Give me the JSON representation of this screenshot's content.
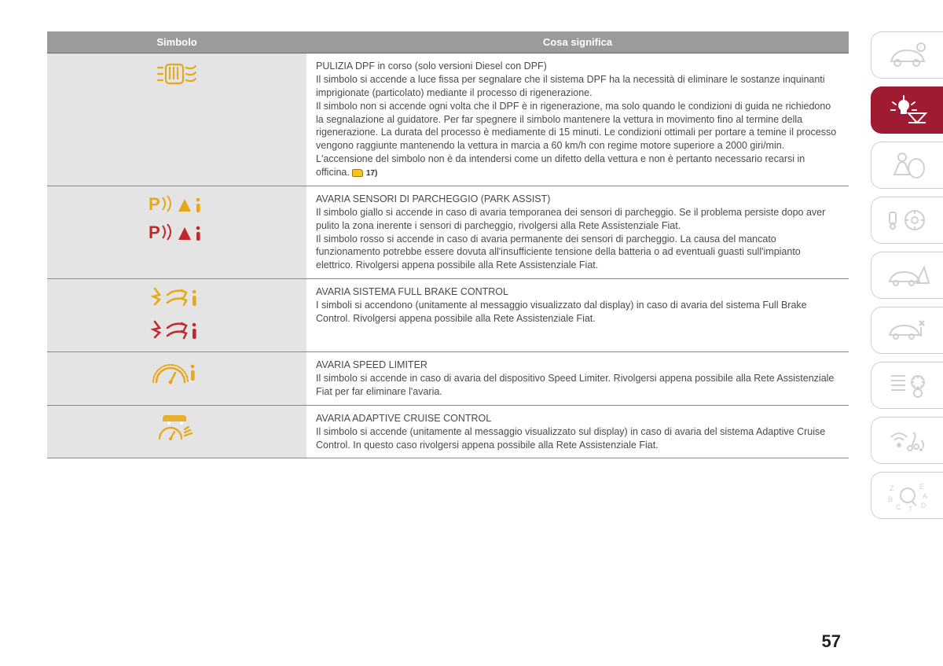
{
  "page_number": "57",
  "colors": {
    "table_header_bg": "#9b9b9b",
    "table_header_text": "#ffffff",
    "symbol_cell_bg": "#e4e4e4",
    "body_text": "#4a4a4a",
    "row_border": "#888888",
    "amber": "#e6a817",
    "red": "#c1272d",
    "tab_active_bg": "#9e1b32",
    "tab_inactive_stroke": "#d0d0d0"
  },
  "table": {
    "headers": {
      "symbol": "Simbolo",
      "meaning": "Cosa significa"
    },
    "rows": [
      {
        "icons": [
          {
            "name": "dpf-icon",
            "color": "amber"
          }
        ],
        "title": "PULIZIA DPF in corso (solo versioni Diesel con DPF)",
        "body": "Il simbolo si accende a luce fissa per segnalare che il sistema DPF ha la necessità di eliminare le sostanze inquinanti imprigionate (particolato) mediante il processo di rigenerazione.\nIl simbolo non si accende ogni volta che il DPF è in rigenerazione, ma solo quando le condizioni di guida ne richiedono la segnalazione al guidatore. Per far spegnere il simbolo mantenere la vettura in movimento fino al termine della rigenerazione. La durata del processo è mediamente di 15 minuti. Le condizioni ottimali per portare a temine il processo vengono raggiunte mantenendo la vettura in marcia a 60 km/h con regime motore superiore a 2000 giri/min.\nL'accensione del simbolo non è da intendersi come un difetto della vettura e non è pertanto necessario recarsi in officina.",
        "note_ref": "17)"
      },
      {
        "icons": [
          {
            "name": "park-assist-warning-icon",
            "color": "amber"
          },
          {
            "name": "park-assist-warning-icon",
            "color": "red"
          }
        ],
        "title": "AVARIA SENSORI DI PARCHEGGIO (PARK ASSIST)",
        "body": "Il simbolo giallo si accende in caso di avaria temporanea dei sensori di parcheggio. Se il problema persiste dopo aver pulito la zona inerente i sensori di parcheggio, rivolgersi alla Rete Assistenziale Fiat.\nIl simbolo rosso si accende in caso di avaria permanente dei sensori di parcheggio. La causa del mancato funzionamento potrebbe essere dovuta all'insufficiente tensione della batteria o ad eventuali guasti sull'impianto elettrico. Rivolgersi appena possibile alla Rete Assistenziale Fiat."
      },
      {
        "icons": [
          {
            "name": "full-brake-control-icon",
            "color": "amber"
          },
          {
            "name": "full-brake-control-icon",
            "color": "red"
          }
        ],
        "title": "AVARIA SISTEMA FULL BRAKE CONTROL",
        "body": "I simboli si accendono (unitamente al messaggio visualizzato dal display) in caso di avaria del sistema Full Brake Control. Rivolgersi appena possibile alla Rete Assistenziale Fiat."
      },
      {
        "icons": [
          {
            "name": "speed-limiter-icon",
            "color": "amber"
          }
        ],
        "title": "AVARIA SPEED LIMITER",
        "body": "Il simbolo si accende in caso di avaria del dispositivo Speed Limiter. Rivolgersi appena possibile alla Rete Assistenziale Fiat per far eliminare l'avaria."
      },
      {
        "icons": [
          {
            "name": "adaptive-cruise-control-icon",
            "color": "amber"
          }
        ],
        "title": "AVARIA ADAPTIVE CRUISE CONTROL",
        "body": "Il simbolo si accende (unitamente al messaggio visualizzato sul display) in caso di avaria del sistema Adaptive Cruise Control. In questo caso rivolgersi appena possibile alla Rete Assistenziale Fiat."
      }
    ]
  },
  "side_tabs": [
    {
      "name": "tab-vehicle-info",
      "active": false
    },
    {
      "name": "tab-warning-lights",
      "active": true
    },
    {
      "name": "tab-safety",
      "active": false
    },
    {
      "name": "tab-starting-driving",
      "active": false
    },
    {
      "name": "tab-emergency",
      "active": false
    },
    {
      "name": "tab-maintenance",
      "active": false
    },
    {
      "name": "tab-technical-data",
      "active": false
    },
    {
      "name": "tab-multimedia",
      "active": false
    },
    {
      "name": "tab-index",
      "active": false
    }
  ]
}
